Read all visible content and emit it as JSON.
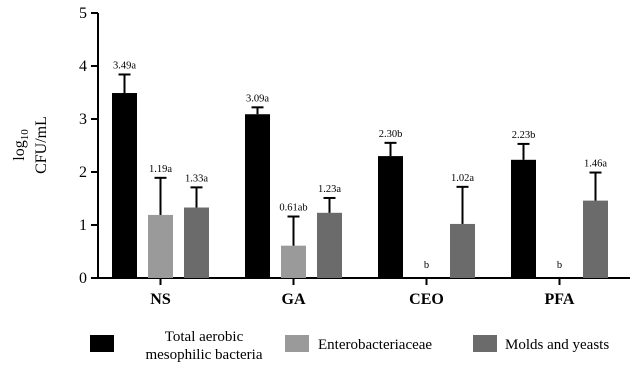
{
  "chart_data": {
    "type": "bar",
    "categories": [
      "NS",
      "GA",
      "CEO",
      "PFA"
    ],
    "ylabel_prefix": "log",
    "ylabel_sub": "10",
    "ylabel_unit": "CFU/mL",
    "ylim": [
      0,
      5
    ],
    "yticks": [
      "0",
      "1",
      "2",
      "3",
      "4",
      "5"
    ],
    "series": [
      {
        "name_lines": [
          "Total aerobic",
          "mesophilic bacteria"
        ],
        "color": "#000000",
        "values": [
          3.49,
          3.09,
          2.3,
          2.23
        ],
        "errors": [
          0.35,
          0.13,
          0.25,
          0.3
        ],
        "labels": [
          "3.49a",
          "3.09a",
          "2.30b",
          "2.23b"
        ]
      },
      {
        "name_lines": [
          "Enterobacteriaceae"
        ],
        "color": "#9a9a9a",
        "values": [
          1.19,
          0.61,
          0,
          0
        ],
        "errors": [
          0.7,
          0.55,
          0,
          0
        ],
        "labels": [
          "1.19a",
          "0.61ab",
          "b",
          "b"
        ]
      },
      {
        "name_lines": [
          "Molds and yeasts"
        ],
        "color": "#6b6b6b",
        "values": [
          1.33,
          1.23,
          1.02,
          1.46
        ],
        "errors": [
          0.38,
          0.28,
          0.7,
          0.53
        ],
        "labels": [
          "1.33a",
          "1.23a",
          "1.02a",
          "1.46a"
        ]
      }
    ],
    "grid": false,
    "legend_position": "bottom"
  }
}
